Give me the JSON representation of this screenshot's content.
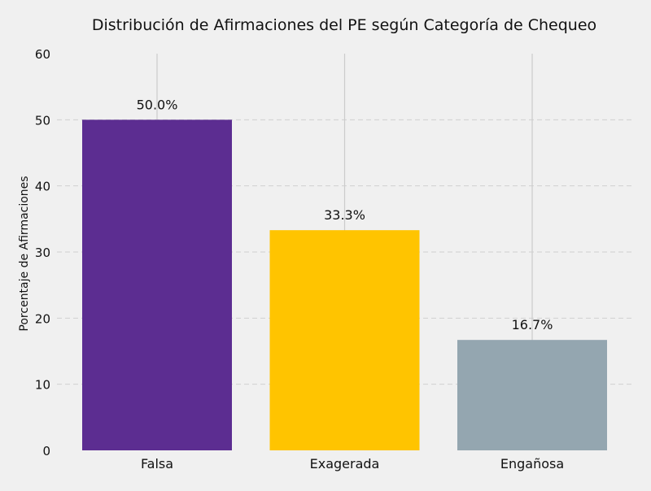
{
  "chart_data": {
    "type": "bar",
    "title": "Distribución de Afirmaciones del PE según Categoría de Chequeo",
    "xlabel": "",
    "ylabel": "Porcentaje de Afirmaciones",
    "categories": [
      "Falsa",
      "Exagerada",
      "Engañosa"
    ],
    "values": [
      50.0,
      33.3,
      16.7
    ],
    "data_labels": [
      "50.0%",
      "33.3%",
      "16.7%"
    ],
    "colors": [
      "#5c2d91",
      "#ffc400",
      "#94a6b0"
    ],
    "ylim": [
      0,
      60
    ],
    "yticks": [
      0,
      10,
      20,
      30,
      40,
      50,
      60
    ],
    "grid": {
      "y": "dashed",
      "x": "solid"
    },
    "background": "#f0f0f0"
  }
}
